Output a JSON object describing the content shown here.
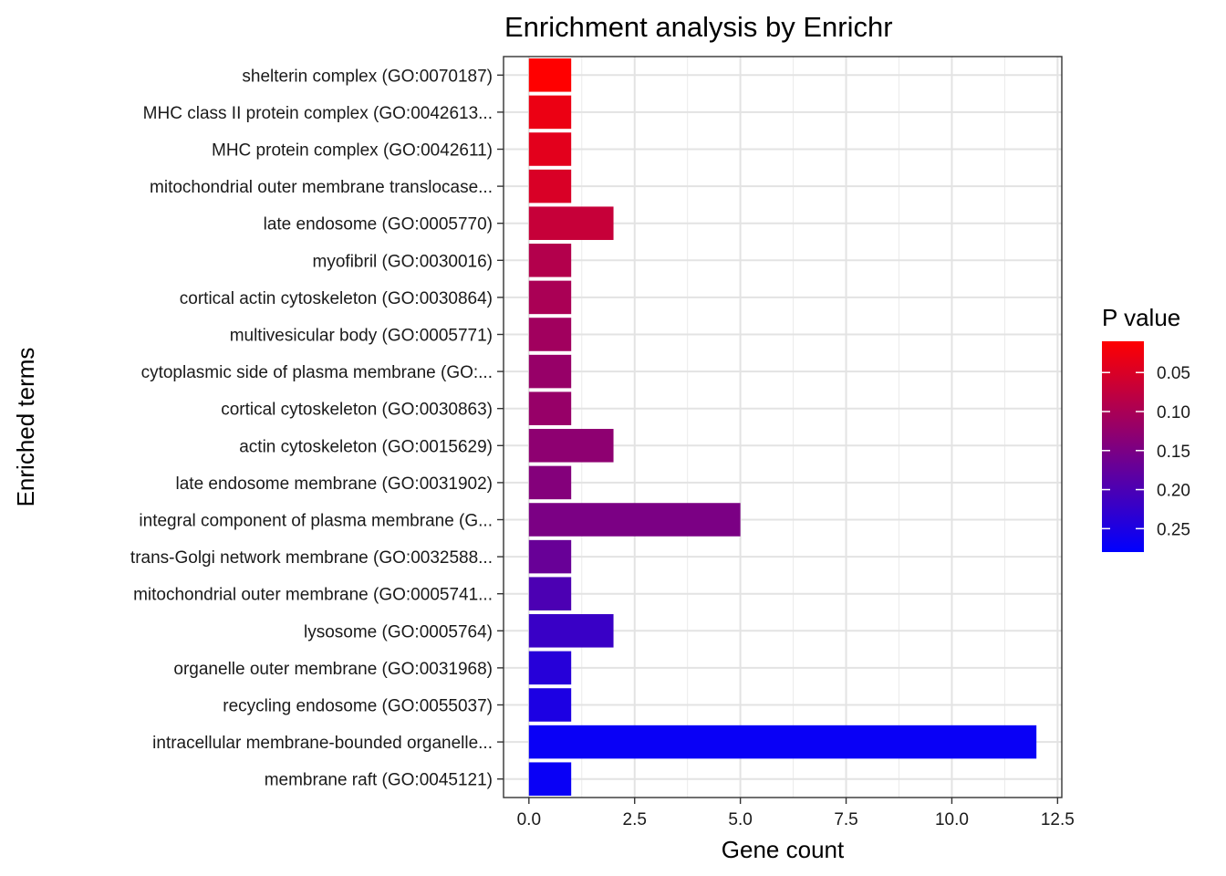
{
  "chart_data": {
    "type": "bar",
    "orientation": "horizontal",
    "title": "Enrichment analysis by Enrichr",
    "xlabel": "Gene count",
    "ylabel": "Enriched terms",
    "xlim": [
      -0.6,
      12.6
    ],
    "x_ticks": [
      0,
      2.5,
      5,
      7.5,
      10,
      12.5
    ],
    "x_tick_labels": [
      "0.0",
      "2.5",
      "5.0",
      "7.5",
      "10.0",
      "12.5"
    ],
    "grid": true,
    "categories": [
      "shelterin complex (GO:0070187)",
      "MHC class II protein complex (GO:0042613...",
      "MHC protein complex (GO:0042611)",
      "mitochondrial outer membrane translocase...",
      "late endosome (GO:0005770)",
      "myofibril (GO:0030016)",
      "cortical actin cytoskeleton (GO:0030864)",
      "multivesicular body (GO:0005771)",
      "cytoplasmic side of plasma membrane (GO:...",
      "cortical cytoskeleton (GO:0030863)",
      "actin cytoskeleton (GO:0015629)",
      "late endosome membrane (GO:0031902)",
      "integral component of plasma membrane (G...",
      "trans-Golgi network membrane (GO:0032588...",
      "mitochondrial outer membrane (GO:0005741...",
      "lysosome (GO:0005764)",
      "organelle outer membrane (GO:0031968)",
      "recycling endosome (GO:0055037)",
      "intracellular membrane-bounded organelle...",
      "membrane raft (GO:0045121)"
    ],
    "values": [
      1,
      1,
      1,
      1,
      2,
      1,
      1,
      1,
      1,
      1,
      2,
      1,
      5,
      1,
      1,
      2,
      1,
      1,
      12,
      1
    ],
    "p_values": [
      0.01,
      0.03,
      0.04,
      0.05,
      0.07,
      0.09,
      0.1,
      0.11,
      0.12,
      0.12,
      0.13,
      0.14,
      0.15,
      0.17,
      0.2,
      0.22,
      0.24,
      0.25,
      0.27,
      0.27
    ],
    "legend": {
      "title": "P value",
      "position": "right",
      "range": [
        0.01,
        0.28
      ],
      "breaks": [
        0.05,
        0.1,
        0.15,
        0.2,
        0.25
      ],
      "labels": [
        "0.05",
        "0.10",
        "0.15",
        "0.20",
        "0.25"
      ],
      "low_color": "#ff0000",
      "high_color": "#0000ff"
    }
  }
}
